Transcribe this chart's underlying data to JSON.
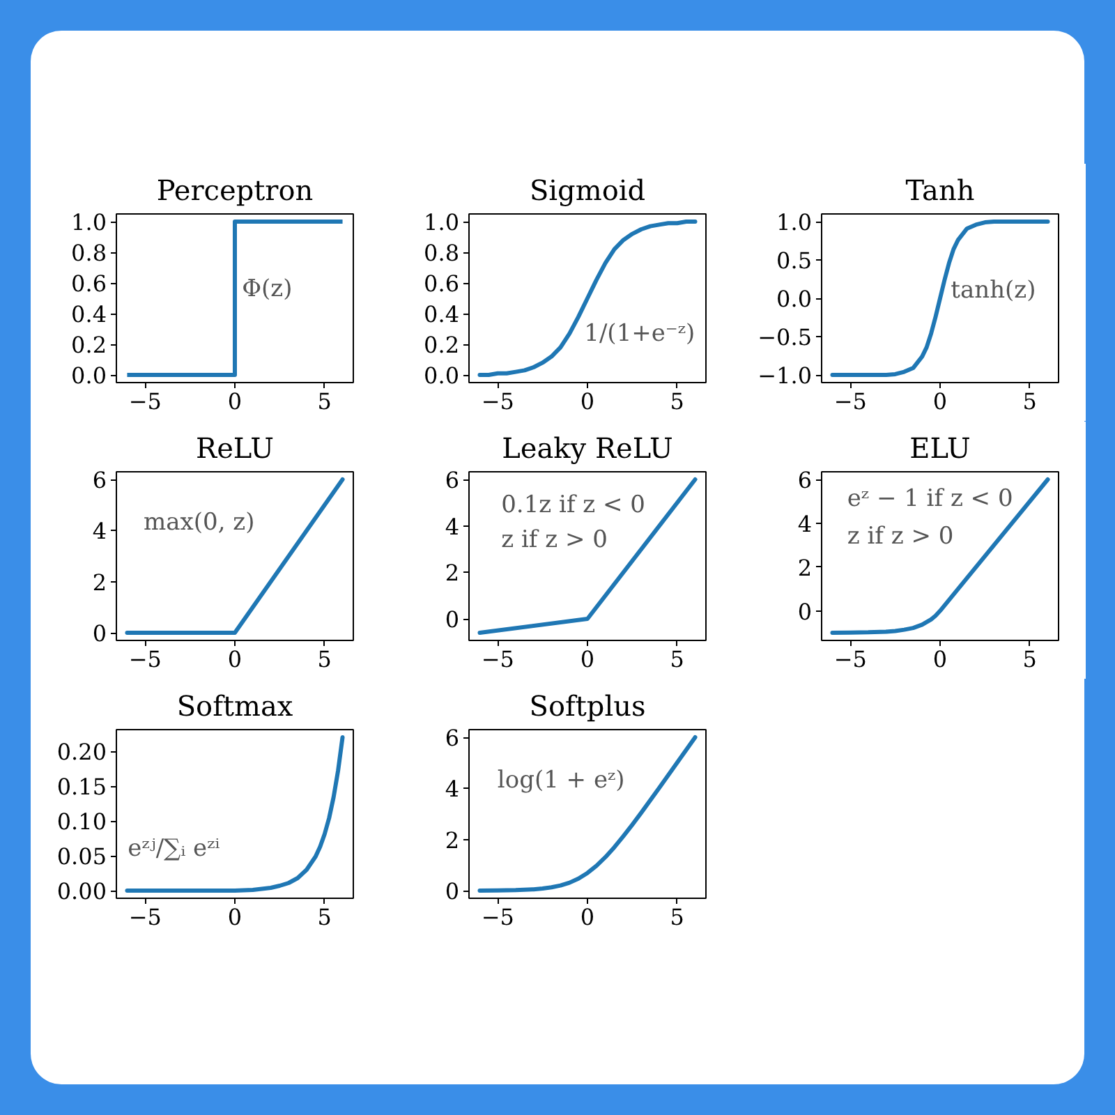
{
  "chart_data": [
    {
      "type": "step",
      "title": "Perceptron",
      "x": [
        -6,
        0,
        6
      ],
      "series": [
        {
          "color": "#1f77b4",
          "values": [
            0,
            1,
            1
          ]
        }
      ],
      "xlim": [
        -6.6,
        6.6
      ],
      "ylim": [
        -0.05,
        1.05
      ],
      "xticks": [
        -5,
        0,
        5
      ],
      "yticks": [
        {
          "value": 0,
          "label": "0.0"
        },
        0.2,
        0.4,
        0.6,
        0.8,
        {
          "value": 1,
          "label": "1.0"
        }
      ],
      "annotations": [
        "Φ(z)"
      ]
    },
    {
      "type": "line",
      "title": "Sigmoid",
      "x": [
        -6,
        -5.5,
        -5,
        -4.5,
        -4,
        -3.5,
        -3,
        -2.5,
        -2,
        -1.5,
        -1,
        -0.5,
        0,
        0.5,
        1,
        1.5,
        2,
        2.5,
        3,
        3.5,
        4,
        4.5,
        5,
        5.5,
        6
      ],
      "series": [
        {
          "color": "#1f77b4",
          "values": [
            0.0,
            0.0,
            0.01,
            0.01,
            0.02,
            0.03,
            0.05,
            0.08,
            0.12,
            0.18,
            0.27,
            0.38,
            0.5,
            0.62,
            0.73,
            0.82,
            0.88,
            0.92,
            0.95,
            0.97,
            0.98,
            0.99,
            0.99,
            1.0,
            1.0
          ]
        }
      ],
      "xlim": [
        -6.6,
        6.6
      ],
      "ylim": [
        -0.05,
        1.05
      ],
      "xticks": [
        -5,
        0,
        5
      ],
      "yticks": [
        {
          "value": 0,
          "label": "0.0"
        },
        0.2,
        0.4,
        0.6,
        0.8,
        {
          "value": 1,
          "label": "1.0"
        }
      ],
      "annotations": [
        "1/(1+e⁻ᶻ)"
      ]
    },
    {
      "type": "line",
      "title": "Tanh",
      "x": [
        -6,
        -4,
        -3,
        -2.5,
        -2,
        -1.5,
        -1,
        -0.75,
        -0.5,
        -0.25,
        0,
        0.25,
        0.5,
        0.75,
        1,
        1.5,
        2,
        2.5,
        3,
        4,
        6
      ],
      "series": [
        {
          "color": "#1f77b4",
          "values": [
            -1.0,
            -1.0,
            -1.0,
            -0.99,
            -0.96,
            -0.91,
            -0.76,
            -0.64,
            -0.46,
            -0.24,
            0,
            0.24,
            0.46,
            0.64,
            0.76,
            0.91,
            0.96,
            0.99,
            1.0,
            1.0,
            1.0
          ]
        }
      ],
      "xlim": [
        -6.6,
        6.6
      ],
      "ylim": [
        -1.1,
        1.1
      ],
      "xticks": [
        -5,
        0,
        5
      ],
      "yticks": [
        {
          "value": -1,
          "label": "−1.0"
        },
        -0.5,
        {
          "value": 0,
          "label": "0.0"
        },
        0.5,
        {
          "value": 1,
          "label": "1.0"
        }
      ],
      "annotations": [
        "tanh(z)"
      ]
    },
    {
      "type": "line",
      "title": "ReLU",
      "x": [
        -6,
        0,
        6
      ],
      "series": [
        {
          "color": "#1f77b4",
          "values": [
            0,
            0,
            6
          ]
        }
      ],
      "xlim": [
        -6.6,
        6.6
      ],
      "ylim": [
        -0.3,
        6.3
      ],
      "xticks": [
        -5,
        0,
        5
      ],
      "yticks": [
        0,
        2,
        4,
        6
      ],
      "annotations": [
        "max(0, z)"
      ]
    },
    {
      "type": "line",
      "title": "Leaky ReLU",
      "x": [
        -6,
        0,
        6
      ],
      "series": [
        {
          "color": "#1f77b4",
          "values": [
            -0.6,
            0,
            6
          ]
        }
      ],
      "xlim": [
        -6.6,
        6.6
      ],
      "ylim": [
        -0.93,
        6.33
      ],
      "xticks": [
        -5,
        0,
        5
      ],
      "yticks": [
        0,
        2,
        4,
        6
      ],
      "annotations": [
        "0.1z if z < 0",
        "z if z > 0"
      ]
    },
    {
      "type": "line",
      "title": "ELU",
      "x": [
        -6,
        -5,
        -4,
        -3,
        -2.5,
        -2,
        -1.5,
        -1,
        -0.5,
        -0.25,
        0,
        6
      ],
      "series": [
        {
          "color": "#1f77b4",
          "values": [
            -1.0,
            -0.99,
            -0.98,
            -0.95,
            -0.92,
            -0.86,
            -0.78,
            -0.63,
            -0.39,
            -0.22,
            0,
            6
          ]
        }
      ],
      "xlim": [
        -6.6,
        6.6
      ],
      "ylim": [
        -1.35,
        6.35
      ],
      "xticks": [
        -5,
        0,
        5
      ],
      "yticks": [
        0,
        2,
        4,
        6
      ],
      "annotations": [
        "eᶻ − 1 if z < 0",
        "z if z > 0"
      ]
    },
    {
      "type": "line",
      "title": "Softmax",
      "x": [
        -6,
        -4,
        -2,
        0,
        1,
        2,
        2.5,
        3,
        3.5,
        4,
        4.5,
        4.75,
        5,
        5.25,
        5.5,
        5.75,
        6
      ],
      "series": [
        {
          "color": "#1f77b4",
          "values": [
            0,
            0,
            0,
            0,
            0.001,
            0.004,
            0.007,
            0.011,
            0.018,
            0.03,
            0.049,
            0.063,
            0.081,
            0.104,
            0.134,
            0.172,
            0.22
          ]
        }
      ],
      "xlim": [
        -6.6,
        6.6
      ],
      "ylim": [
        -0.011,
        0.231
      ],
      "xticks": [
        -5,
        0,
        5
      ],
      "yticks": [
        {
          "value": 0,
          "label": "0.00"
        },
        0.05,
        {
          "value": 0.1,
          "label": "0.10"
        },
        0.15,
        {
          "value": 0.2,
          "label": "0.20"
        }
      ],
      "annotations": [
        "eᶻʲ/∑ᵢ eᶻⁱ"
      ]
    },
    {
      "type": "line",
      "title": "Softplus",
      "x": [
        -6,
        -5,
        -4,
        -3,
        -2.5,
        -2,
        -1.5,
        -1,
        -0.5,
        0,
        0.5,
        1,
        1.5,
        2,
        2.5,
        3,
        4,
        5,
        6
      ],
      "series": [
        {
          "color": "#1f77b4",
          "values": [
            0.0,
            0.01,
            0.02,
            0.05,
            0.08,
            0.13,
            0.2,
            0.31,
            0.47,
            0.69,
            0.97,
            1.31,
            1.7,
            2.13,
            2.58,
            3.05,
            4.02,
            5.01,
            6.0
          ]
        }
      ],
      "xlim": [
        -6.6,
        6.6
      ],
      "ylim": [
        -0.3,
        6.3
      ],
      "xticks": [
        -5,
        0,
        5
      ],
      "yticks": [
        0,
        2,
        4,
        6
      ],
      "annotations": [
        "log(1 + eᶻ)"
      ]
    }
  ]
}
